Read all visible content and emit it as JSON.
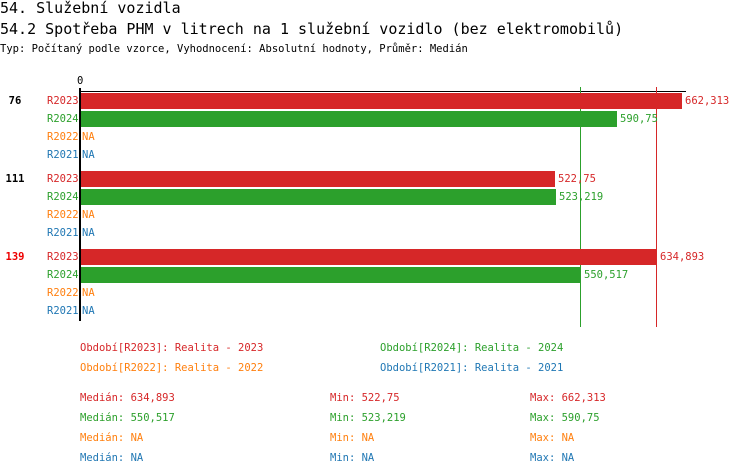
{
  "header": {
    "title": "54. Služební vozidla",
    "subtitle": "54.2 Spotřeba PHM v litrech na 1 služební vozidlo (bez elektromobilů)",
    "meta": "Typ: Počítaný podle vzorce, Vyhodnocení: Absolutní hodnoty, Průměr: Medián"
  },
  "chart_data": {
    "type": "bar",
    "orientation": "horizontal",
    "axis_zero_label": "0",
    "categories": [
      "76",
      "111",
      "139"
    ],
    "highlight_category": "139",
    "series": [
      {
        "name": "R2023",
        "color": "#d62728",
        "values": [
          662.313,
          522.75,
          634.893
        ],
        "labels": [
          "662,313",
          "522,75",
          "634,893"
        ]
      },
      {
        "name": "R2024",
        "color": "#2ca02c",
        "values": [
          590.75,
          523.219,
          550.517
        ],
        "labels": [
          "590,75",
          "523,219",
          "550,517"
        ]
      },
      {
        "name": "R2022",
        "color": "#ff7f0e",
        "values": [
          null,
          null,
          null
        ],
        "labels": [
          "NA",
          "NA",
          "NA"
        ]
      },
      {
        "name": "R2021",
        "color": "#1f77b4",
        "values": [
          null,
          null,
          null
        ],
        "labels": [
          "NA",
          "NA",
          "NA"
        ]
      }
    ],
    "median_lines": [
      {
        "series": "R2023",
        "value": 634.893
      },
      {
        "series": "R2024",
        "value": 550.517
      }
    ]
  },
  "legend": [
    {
      "text": "Období[R2023]: Realita - 2023",
      "color": "#d62728"
    },
    {
      "text": "Období[R2024]: Realita - 2024",
      "color": "#2ca02c"
    },
    {
      "text": "Období[R2022]: Realita - 2022",
      "color": "#ff7f0e"
    },
    {
      "text": "Období[R2021]: Realita - 2021",
      "color": "#1f77b4"
    }
  ],
  "stats": [
    {
      "median": "Medián: 634,893",
      "min": "Min: 522,75",
      "max": "Max: 662,313",
      "color": "#d62728"
    },
    {
      "median": "Medián: 550,517",
      "min": "Min: 523,219",
      "max": "Max: 590,75",
      "color": "#2ca02c"
    },
    {
      "median": "Medián: NA",
      "min": "Min: NA",
      "max": "Max: NA",
      "color": "#ff7f0e"
    },
    {
      "median": "Medián: NA",
      "min": "Min: NA",
      "max": "Max: NA",
      "color": "#1f77b4"
    }
  ]
}
